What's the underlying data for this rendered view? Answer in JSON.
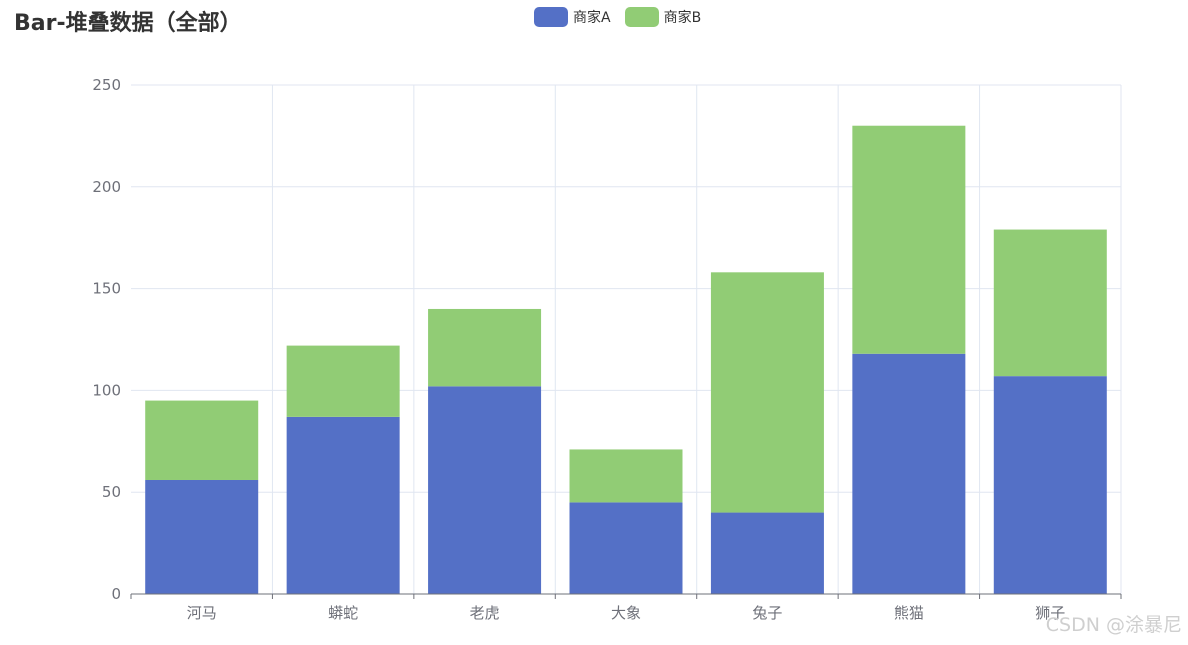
{
  "chart_data": {
    "type": "bar",
    "stacked": true,
    "title": "Bar-堆叠数据（全部）",
    "categories": [
      "河马",
      "蟒蛇",
      "老虎",
      "大象",
      "兔子",
      "熊猫",
      "狮子"
    ],
    "series": [
      {
        "name": "商家A",
        "values": [
          56,
          87,
          102,
          45,
          40,
          118,
          107
        ],
        "color": "#5470c6"
      },
      {
        "name": "商家B",
        "values": [
          39,
          35,
          38,
          26,
          118,
          112,
          72
        ],
        "color": "#91cc75"
      }
    ],
    "ylim": [
      0,
      250
    ],
    "yticks": [
      0,
      50,
      100,
      150,
      200,
      250
    ],
    "grid": true,
    "legend": "top-center"
  },
  "watermark": "CSDN @涂暴尼"
}
